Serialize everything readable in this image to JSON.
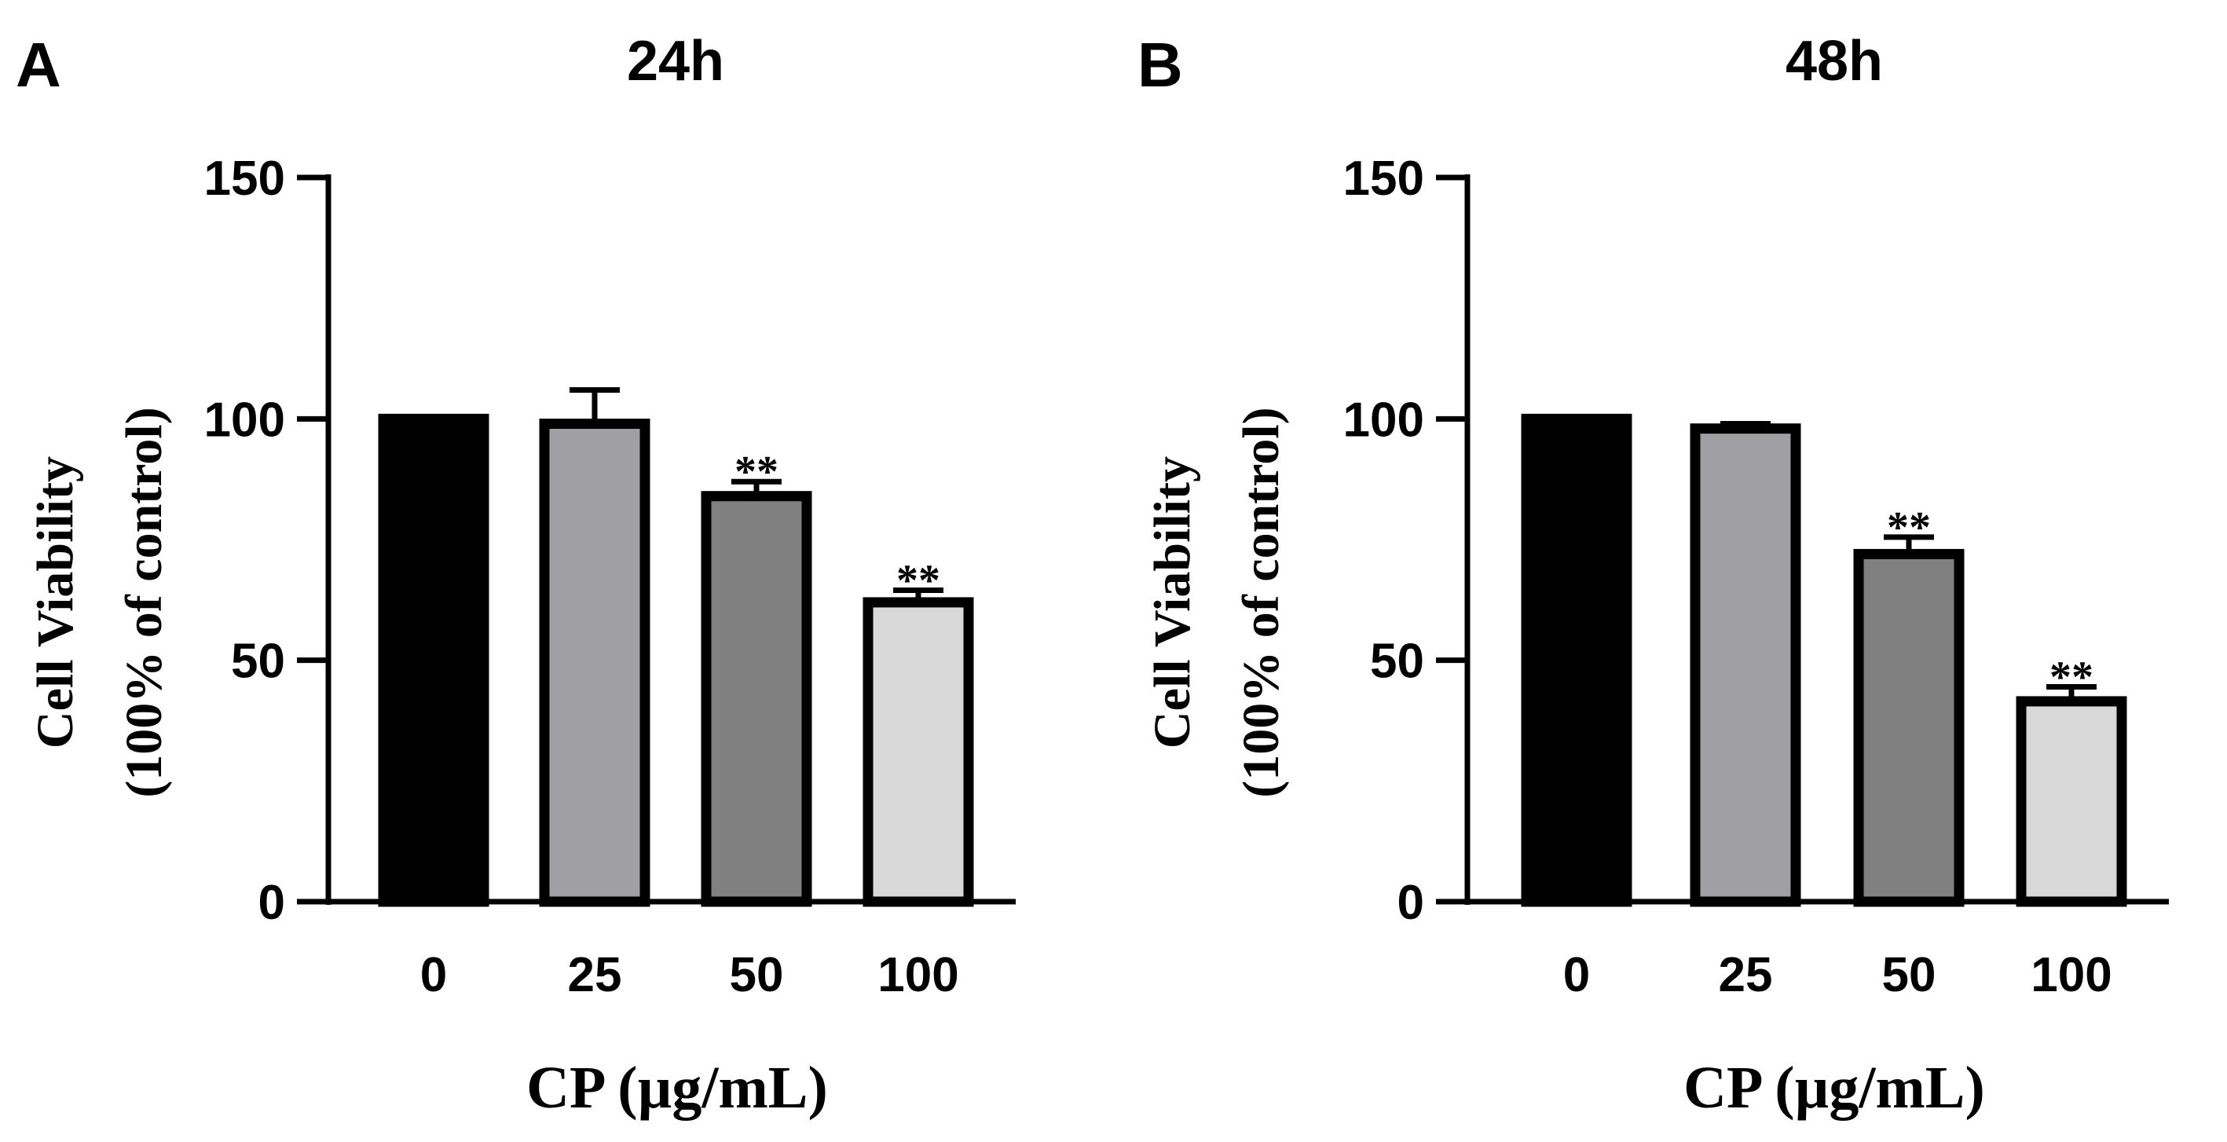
{
  "chart_data": [
    {
      "panel_label": "A",
      "type": "bar",
      "title": "24h",
      "categories": [
        "0",
        "25",
        "50",
        "100"
      ],
      "values": [
        100,
        99,
        84,
        62
      ],
      "errors": [
        0,
        7,
        3,
        2.5
      ],
      "significance": [
        "",
        "",
        "**",
        "**"
      ],
      "bar_colors": [
        "#000000",
        "#a0a0a4",
        "#808080",
        "#d8d8d8"
      ],
      "ylabel": "Cell Viability",
      "ylabel2": "(100% of control)",
      "xlabel": "CP (µg/mL)",
      "ylim": [
        0,
        150
      ],
      "yticks": [
        0,
        50,
        100,
        150
      ]
    },
    {
      "panel_label": "B",
      "type": "bar",
      "title": "48h",
      "categories": [
        "0",
        "25",
        "50",
        "100"
      ],
      "values": [
        100,
        98,
        72,
        41.5
      ],
      "errors": [
        0,
        1,
        3.5,
        3
      ],
      "significance": [
        "",
        "",
        "**",
        "**"
      ],
      "bar_colors": [
        "#000000",
        "#a0a0a4",
        "#808080",
        "#d8d8d8"
      ],
      "ylabel": "Cell Viability",
      "ylabel2": "(100% of control)",
      "xlabel": "CP (µg/mL)",
      "ylim": [
        0,
        150
      ],
      "yticks": [
        0,
        50,
        100,
        150
      ]
    }
  ]
}
